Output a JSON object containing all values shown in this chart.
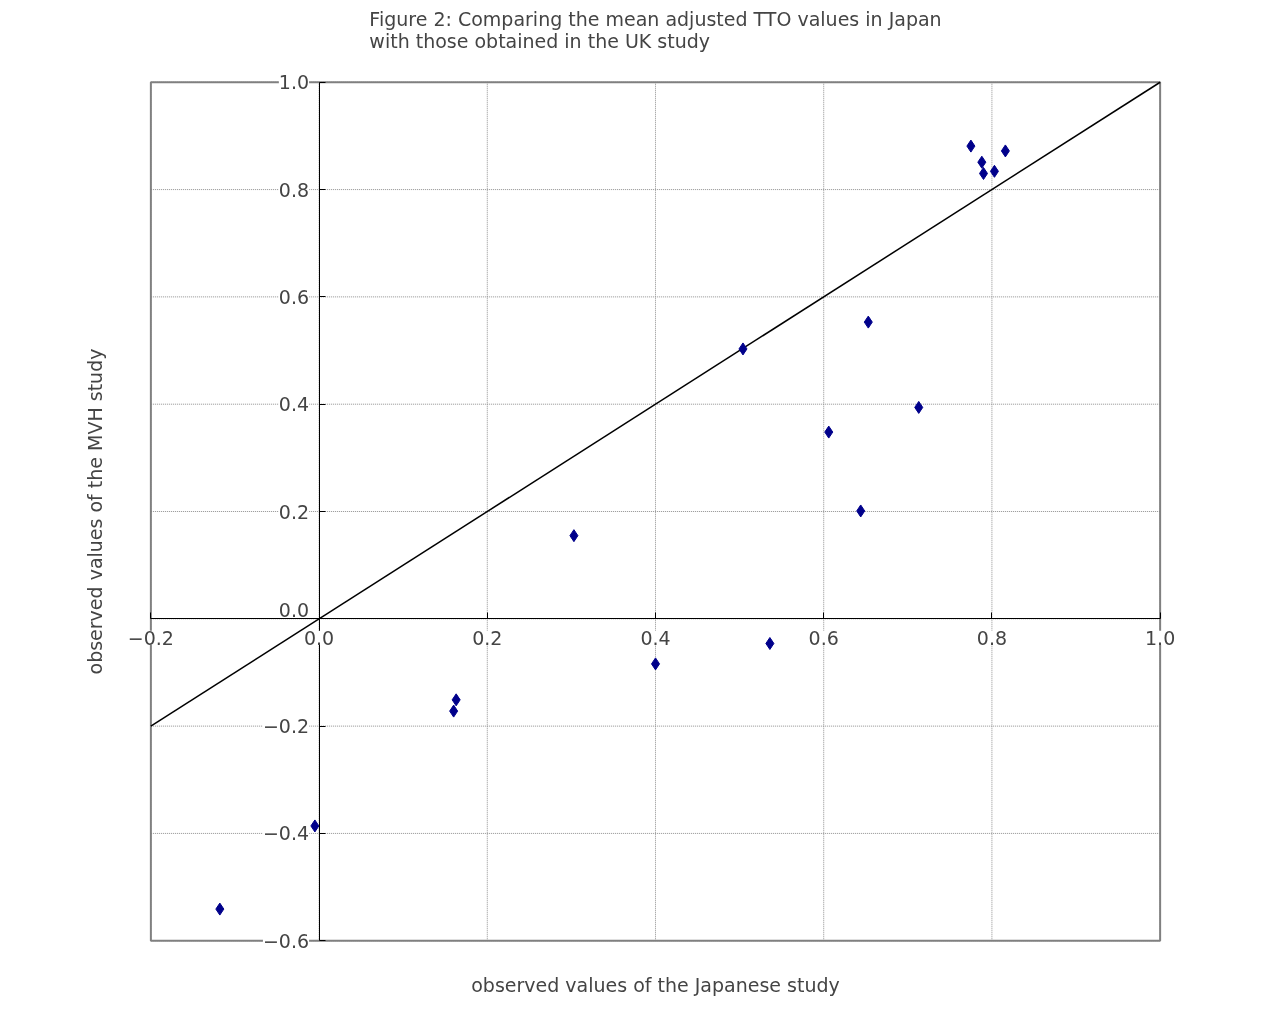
{
  "chart_data": {
    "type": "scatter",
    "title": "Figure 2: Comparing the mean adjusted TTO values in Japan\nwith those obtained in the UK study",
    "xlabel": "observed values of the Japanese study",
    "ylabel": "observed values of the MVH study",
    "xlim": [
      -0.2,
      1.0
    ],
    "ylim": [
      -0.6,
      1.0
    ],
    "xticks": [
      {
        "value": -0.2,
        "label": "−0.2"
      },
      {
        "value": 0,
        "label": "0.0"
      },
      {
        "value": 0.2,
        "label": "0.2"
      },
      {
        "value": 0.4,
        "label": "0.4"
      },
      {
        "value": 0.6,
        "label": "0.6"
      },
      {
        "value": 0.8,
        "label": "0.8"
      },
      {
        "value": 1,
        "label": "1.0"
      }
    ],
    "yticks": [
      {
        "value": -0.6,
        "label": "−0.6"
      },
      {
        "value": -0.4,
        "label": "−0.4"
      },
      {
        "value": -0.2,
        "label": "−0.2"
      },
      {
        "value": 0,
        "label": "0.0"
      },
      {
        "value": 0.2,
        "label": "0.2"
      },
      {
        "value": 0.4,
        "label": "0.4"
      },
      {
        "value": 0.6,
        "label": "0.6"
      },
      {
        "value": 0.8,
        "label": "0.8"
      },
      {
        "value": 1,
        "label": "1.0"
      }
    ],
    "grid": true,
    "marker": "diamond",
    "series": [
      {
        "color": "#00008b",
        "x": [
          -0.118,
          -0.005,
          0.16,
          0.163,
          0.303,
          0.4,
          0.504,
          0.536,
          0.606,
          0.644,
          0.653,
          0.713,
          0.775,
          0.788,
          0.79,
          0.803,
          0.816
        ],
        "values": [
          -0.541,
          -0.386,
          -0.172,
          -0.151,
          0.155,
          -0.084,
          0.503,
          -0.046,
          0.348,
          0.201,
          0.553,
          0.394,
          0.881,
          0.851,
          0.83,
          0.834,
          0.872
        ]
      },
      {
        "type": "line",
        "color": "#000000",
        "x": [
          -0.2,
          1.0
        ],
        "values": [
          -0.2,
          1.0
        ],
        "line_style": "solid",
        "marker": "none"
      }
    ]
  }
}
